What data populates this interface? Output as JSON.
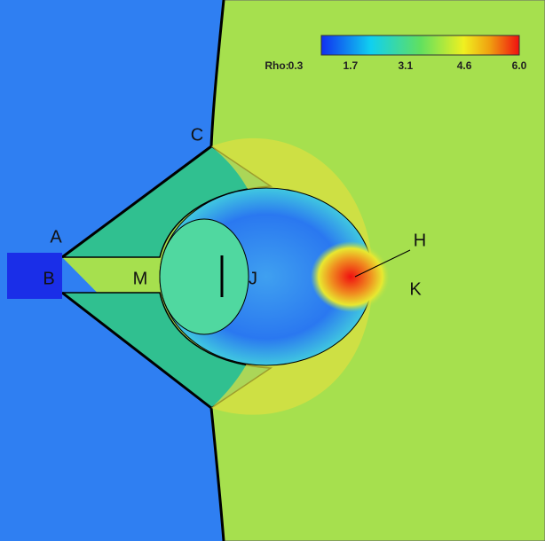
{
  "colorbar": {
    "label": "Rho:",
    "range": [
      0.3,
      6.0
    ],
    "ticks": [
      0.3,
      1.7,
      3.1,
      4.6,
      {
        "value": 6.0,
        "label": "6.0"
      }
    ]
  },
  "annotations": [
    {
      "label": "A"
    },
    {
      "label": "B"
    },
    {
      "label": "C"
    },
    {
      "label": "M"
    },
    {
      "label": "J"
    },
    {
      "label": "H"
    },
    {
      "label": "K"
    }
  ]
}
